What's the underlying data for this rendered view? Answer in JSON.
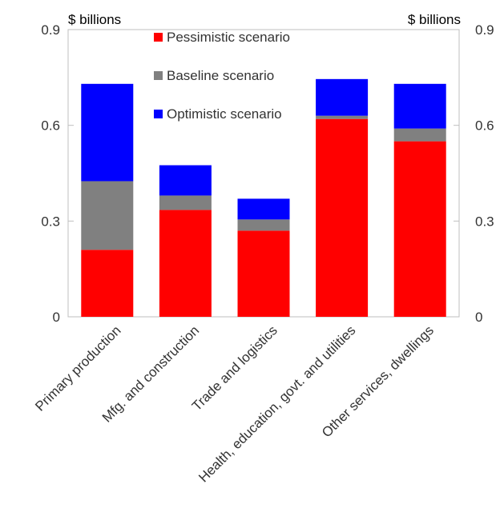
{
  "chart_data": {
    "type": "bar",
    "stacked": true,
    "categories": [
      "Primary production",
      "Mfg. and construction",
      "Trade and logistics",
      "Health, education, govt. and utilities",
      "Other services, dwellings"
    ],
    "series": [
      {
        "name": "Pessimistic scenario",
        "color": "#ff0000",
        "values": [
          0.21,
          0.335,
          0.27,
          0.62,
          0.55
        ]
      },
      {
        "name": "Baseline scenario",
        "color": "#808080",
        "values": [
          0.215,
          0.045,
          0.035,
          0.01,
          0.04
        ]
      },
      {
        "name": "Optimistic scenario",
        "color": "#0000ff",
        "values": [
          0.305,
          0.095,
          0.065,
          0.115,
          0.14
        ]
      }
    ],
    "left_unit": "$ billions",
    "right_unit": "$ billions",
    "ylim": [
      0,
      0.9
    ],
    "yticks": [
      "0",
      "0.3",
      "0.6",
      "0.9"
    ],
    "legend_position": "top-center",
    "grid": false
  }
}
